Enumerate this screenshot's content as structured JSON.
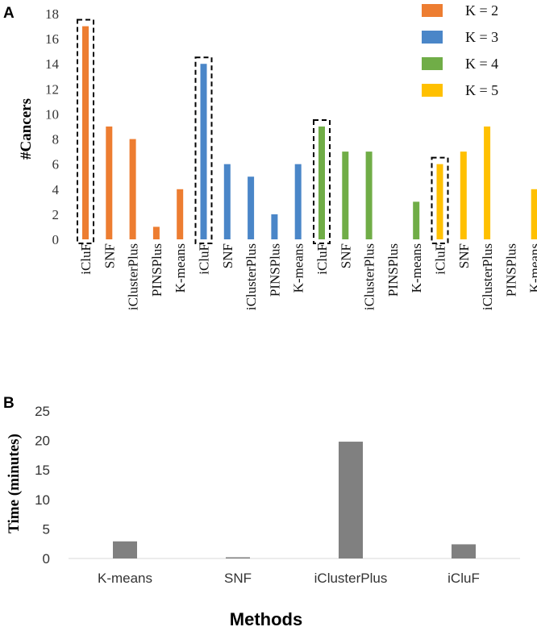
{
  "chart_data": [
    {
      "type": "bar",
      "panel_label": "A",
      "title": "",
      "ylabel": "#Cancers",
      "xlabel": "",
      "ylim": [
        0,
        18
      ],
      "yticks": [
        0,
        2,
        4,
        6,
        8,
        10,
        12,
        14,
        16,
        18
      ],
      "grid": false,
      "legend_position": "top-right",
      "groups": [
        {
          "name": "K = 2",
          "color": "#ED7D31",
          "categories": [
            "iCluF",
            "SNF",
            "iClusterPlus",
            "PINSPlus",
            "K-means"
          ],
          "values": [
            17,
            9,
            8,
            1,
            4
          ]
        },
        {
          "name": "K = 3",
          "color": "#4A86C8",
          "categories": [
            "iCluF",
            "SNF",
            "iClusterPlus",
            "PINSPlus",
            "K-means"
          ],
          "values": [
            14,
            6,
            5,
            2,
            6
          ]
        },
        {
          "name": "K = 4",
          "color": "#70AD47",
          "categories": [
            "iCluF",
            "SNF",
            "iClusterPlus",
            "PINSPlus",
            "K-means"
          ],
          "values": [
            9,
            7,
            7,
            0,
            3
          ]
        },
        {
          "name": "K = 5",
          "color": "#FFC000",
          "categories": [
            "iCluF",
            "SNF",
            "iClusterPlus",
            "PINSPlus",
            "K-means"
          ],
          "values": [
            6,
            7,
            9,
            0,
            4
          ]
        }
      ],
      "highlighted": "iCluF"
    },
    {
      "type": "bar",
      "panel_label": "B",
      "title": "",
      "ylabel": "Time (minutes)",
      "xlabel": "Methods",
      "ylim": [
        0,
        25
      ],
      "yticks": [
        0,
        5,
        10,
        15,
        20,
        25
      ],
      "grid": false,
      "color": "#808080",
      "categories": [
        "K-means",
        "SNF",
        "iClusterPlus",
        "iCluF"
      ],
      "values": [
        2.9,
        0.2,
        19.8,
        2.4
      ]
    }
  ]
}
